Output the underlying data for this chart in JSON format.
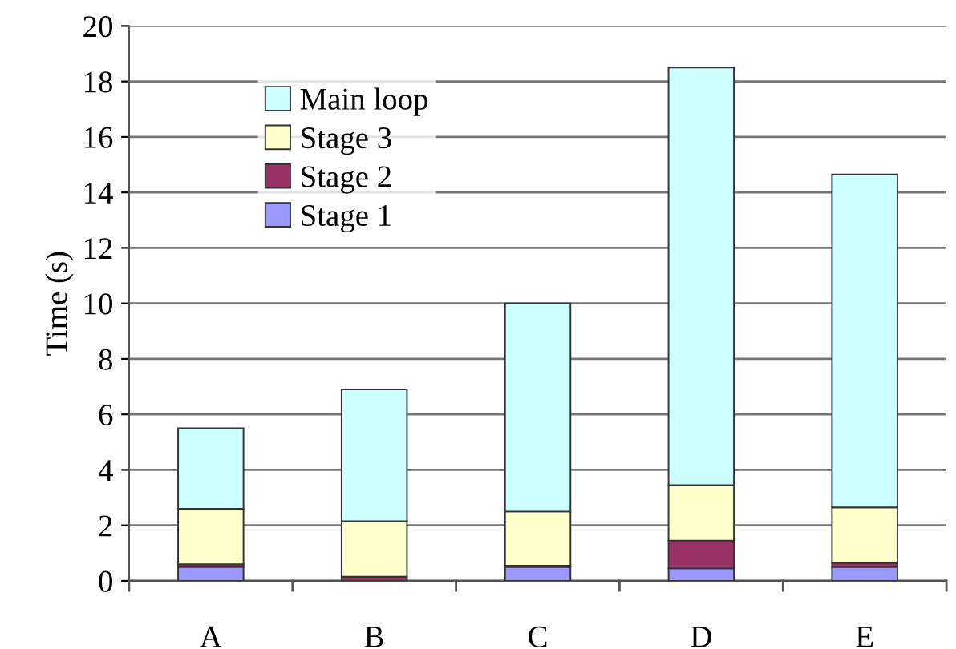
{
  "chart_data": {
    "type": "bar",
    "stacked": true,
    "ylabel": "Time (s)",
    "categories": [
      "A",
      "B",
      "C",
      "D",
      "E"
    ],
    "series": [
      {
        "name": "Stage 1",
        "color": "#9999ff",
        "values": [
          0.5,
          0.0,
          0.5,
          0.45,
          0.5
        ]
      },
      {
        "name": "Stage 2",
        "color": "#993366",
        "values": [
          0.1,
          0.15,
          0.05,
          1.0,
          0.15
        ]
      },
      {
        "name": "Stage 3",
        "color": "#ffffcc",
        "values": [
          2.0,
          2.0,
          1.95,
          2.0,
          2.0
        ]
      },
      {
        "name": "Main loop",
        "color": "#ccffff",
        "values": [
          2.9,
          4.75,
          7.5,
          15.05,
          12.0
        ]
      }
    ],
    "ylim": [
      0,
      20
    ],
    "yticks": [
      0,
      2,
      4,
      6,
      8,
      10,
      12,
      14,
      16,
      18,
      20
    ],
    "grid": "y",
    "legend": "top left"
  }
}
